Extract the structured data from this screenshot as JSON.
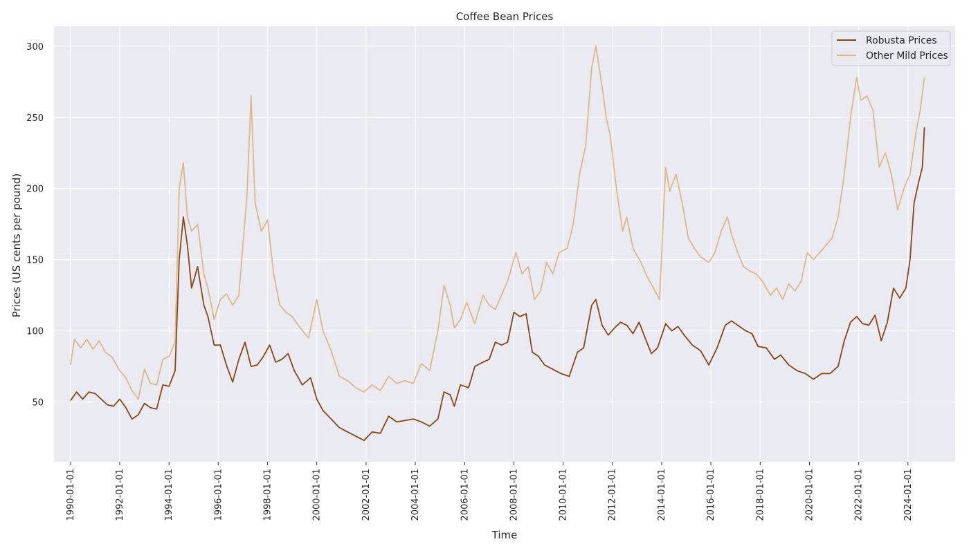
{
  "chart_data": {
    "type": "line",
    "title": "Coffee Bean Prices",
    "xlabel": "Time",
    "ylabel": "Prices (US cents per pound)",
    "ylabel_color": "#a0522d",
    "xlim": [
      "1989-05-01",
      "2025-12-01"
    ],
    "ylim": [
      8,
      314
    ],
    "x_ticks": [
      "1990-01-01",
      "1992-01-01",
      "1994-01-01",
      "1996-01-01",
      "1998-01-01",
      "2000-01-01",
      "2002-01-01",
      "2004-01-01",
      "2006-01-01",
      "2008-01-01",
      "2010-01-01",
      "2012-01-01",
      "2014-01-01",
      "2016-01-01",
      "2018-01-01",
      "2020-01-01",
      "2022-01-01",
      "2024-01-01"
    ],
    "y_ticks": [
      50,
      100,
      150,
      200,
      250,
      300
    ],
    "grid": true,
    "legend_position": "top-right",
    "background": "#eaeaf2",
    "series": [
      {
        "name": "Robusta Prices",
        "color": "#8b4513",
        "points": [
          [
            "1990-01-01",
            51
          ],
          [
            "1990-04-01",
            57
          ],
          [
            "1990-07-01",
            52
          ],
          [
            "1990-10-01",
            57
          ],
          [
            "1991-01-01",
            56
          ],
          [
            "1991-04-01",
            52
          ],
          [
            "1991-07-01",
            48
          ],
          [
            "1991-10-01",
            47
          ],
          [
            "1992-01-01",
            52
          ],
          [
            "1992-04-01",
            46
          ],
          [
            "1992-07-01",
            38
          ],
          [
            "1992-10-01",
            41
          ],
          [
            "1993-01-01",
            49
          ],
          [
            "1993-04-01",
            46
          ],
          [
            "1993-07-01",
            45
          ],
          [
            "1993-10-01",
            62
          ],
          [
            "1994-01-01",
            61
          ],
          [
            "1994-04-01",
            72
          ],
          [
            "1994-06-01",
            150
          ],
          [
            "1994-08-01",
            180
          ],
          [
            "1994-10-01",
            160
          ],
          [
            "1994-12-01",
            130
          ],
          [
            "1995-03-01",
            145
          ],
          [
            "1995-06-01",
            118
          ],
          [
            "1995-08-01",
            110
          ],
          [
            "1995-11-01",
            90
          ],
          [
            "1996-02-01",
            90
          ],
          [
            "1996-05-01",
            76
          ],
          [
            "1996-08-01",
            64
          ],
          [
            "1996-11-01",
            80
          ],
          [
            "1997-02-01",
            92
          ],
          [
            "1997-05-01",
            75
          ],
          [
            "1997-08-01",
            76
          ],
          [
            "1997-11-01",
            82
          ],
          [
            "1998-02-01",
            90
          ],
          [
            "1998-05-01",
            78
          ],
          [
            "1998-08-01",
            80
          ],
          [
            "1998-11-01",
            84
          ],
          [
            "1999-02-01",
            72
          ],
          [
            "1999-06-01",
            62
          ],
          [
            "1999-10-01",
            67
          ],
          [
            "2000-01-01",
            52
          ],
          [
            "2000-04-01",
            44
          ],
          [
            "2000-08-01",
            38
          ],
          [
            "2000-12-01",
            32
          ],
          [
            "2001-04-01",
            29
          ],
          [
            "2001-08-01",
            26
          ],
          [
            "2001-12-01",
            23
          ],
          [
            "2002-04-01",
            29
          ],
          [
            "2002-08-01",
            28
          ],
          [
            "2002-12-01",
            40
          ],
          [
            "2003-04-01",
            36
          ],
          [
            "2003-08-01",
            37
          ],
          [
            "2003-12-01",
            38
          ],
          [
            "2004-04-01",
            36
          ],
          [
            "2004-08-01",
            33
          ],
          [
            "2004-12-01",
            38
          ],
          [
            "2005-03-01",
            57
          ],
          [
            "2005-06-01",
            55
          ],
          [
            "2005-08-01",
            47
          ],
          [
            "2005-11-01",
            62
          ],
          [
            "2006-03-01",
            60
          ],
          [
            "2006-06-01",
            75
          ],
          [
            "2006-10-01",
            78
          ],
          [
            "2007-01-01",
            80
          ],
          [
            "2007-04-01",
            92
          ],
          [
            "2007-07-01",
            90
          ],
          [
            "2007-10-01",
            92
          ],
          [
            "2008-01-01",
            113
          ],
          [
            "2008-04-01",
            110
          ],
          [
            "2008-07-01",
            112
          ],
          [
            "2008-10-01",
            85
          ],
          [
            "2009-01-01",
            82
          ],
          [
            "2009-04-01",
            76
          ],
          [
            "2009-08-01",
            73
          ],
          [
            "2009-12-01",
            70
          ],
          [
            "2010-04-01",
            68
          ],
          [
            "2010-08-01",
            85
          ],
          [
            "2010-11-01",
            88
          ],
          [
            "2011-03-01",
            118
          ],
          [
            "2011-05-01",
            122
          ],
          [
            "2011-08-01",
            104
          ],
          [
            "2011-11-01",
            97
          ],
          [
            "2012-02-01",
            102
          ],
          [
            "2012-05-01",
            106
          ],
          [
            "2012-08-01",
            104
          ],
          [
            "2012-11-01",
            98
          ],
          [
            "2013-02-01",
            106
          ],
          [
            "2013-05-01",
            95
          ],
          [
            "2013-08-01",
            84
          ],
          [
            "2013-11-01",
            88
          ],
          [
            "2014-03-01",
            105
          ],
          [
            "2014-06-01",
            100
          ],
          [
            "2014-09-01",
            103
          ],
          [
            "2014-12-01",
            97
          ],
          [
            "2015-04-01",
            90
          ],
          [
            "2015-08-01",
            86
          ],
          [
            "2015-12-01",
            76
          ],
          [
            "2016-04-01",
            88
          ],
          [
            "2016-08-01",
            104
          ],
          [
            "2016-11-01",
            107
          ],
          [
            "2017-03-01",
            103
          ],
          [
            "2017-06-01",
            100
          ],
          [
            "2017-09-01",
            98
          ],
          [
            "2017-12-01",
            89
          ],
          [
            "2018-04-01",
            88
          ],
          [
            "2018-08-01",
            80
          ],
          [
            "2018-11-01",
            83
          ],
          [
            "2019-03-01",
            76
          ],
          [
            "2019-07-01",
            72
          ],
          [
            "2019-11-01",
            70
          ],
          [
            "2020-03-01",
            66
          ],
          [
            "2020-07-01",
            70
          ],
          [
            "2020-11-01",
            70
          ],
          [
            "2021-03-01",
            75
          ],
          [
            "2021-06-01",
            93
          ],
          [
            "2021-09-01",
            106
          ],
          [
            "2021-12-01",
            110
          ],
          [
            "2022-03-01",
            105
          ],
          [
            "2022-06-01",
            104
          ],
          [
            "2022-09-01",
            111
          ],
          [
            "2022-12-01",
            93
          ],
          [
            "2023-03-01",
            106
          ],
          [
            "2023-06-01",
            130
          ],
          [
            "2023-09-01",
            123
          ],
          [
            "2023-12-01",
            130
          ],
          [
            "2024-02-01",
            150
          ],
          [
            "2024-04-01",
            190
          ],
          [
            "2024-06-01",
            203
          ],
          [
            "2024-08-01",
            215
          ],
          [
            "2024-09-01",
            243
          ]
        ]
      },
      {
        "name": "Other Mild Prices",
        "color": "#deb887",
        "points": [
          [
            "1990-01-01",
            76
          ],
          [
            "1990-03-01",
            94
          ],
          [
            "1990-06-01",
            88
          ],
          [
            "1990-09-01",
            94
          ],
          [
            "1990-12-01",
            87
          ],
          [
            "1991-03-01",
            93
          ],
          [
            "1991-06-01",
            85
          ],
          [
            "1991-09-01",
            82
          ],
          [
            "1992-01-01",
            72
          ],
          [
            "1992-04-01",
            67
          ],
          [
            "1992-07-01",
            58
          ],
          [
            "1992-10-01",
            52
          ],
          [
            "1993-01-01",
            73
          ],
          [
            "1993-04-01",
            63
          ],
          [
            "1993-07-01",
            62
          ],
          [
            "1993-10-01",
            80
          ],
          [
            "1994-01-01",
            82
          ],
          [
            "1994-04-01",
            92
          ],
          [
            "1994-06-01",
            200
          ],
          [
            "1994-08-01",
            218
          ],
          [
            "1994-10-01",
            180
          ],
          [
            "1994-12-01",
            170
          ],
          [
            "1995-03-01",
            175
          ],
          [
            "1995-06-01",
            140
          ],
          [
            "1995-08-01",
            130
          ],
          [
            "1995-11-01",
            108
          ],
          [
            "1996-02-01",
            122
          ],
          [
            "1996-05-01",
            126
          ],
          [
            "1996-08-01",
            118
          ],
          [
            "1996-11-01",
            125
          ],
          [
            "1997-03-01",
            195
          ],
          [
            "1997-05-01",
            265
          ],
          [
            "1997-07-01",
            190
          ],
          [
            "1997-10-01",
            170
          ],
          [
            "1998-01-01",
            178
          ],
          [
            "1998-04-01",
            140
          ],
          [
            "1998-07-01",
            118
          ],
          [
            "1998-10-01",
            113
          ],
          [
            "1999-01-01",
            110
          ],
          [
            "1999-05-01",
            102
          ],
          [
            "1999-09-01",
            95
          ],
          [
            "2000-01-01",
            122
          ],
          [
            "2000-04-01",
            100
          ],
          [
            "2000-08-01",
            86
          ],
          [
            "2000-12-01",
            68
          ],
          [
            "2001-04-01",
            65
          ],
          [
            "2001-08-01",
            60
          ],
          [
            "2001-12-01",
            57
          ],
          [
            "2002-04-01",
            62
          ],
          [
            "2002-08-01",
            58
          ],
          [
            "2002-12-01",
            68
          ],
          [
            "2003-04-01",
            63
          ],
          [
            "2003-08-01",
            65
          ],
          [
            "2003-12-01",
            63
          ],
          [
            "2004-04-01",
            77
          ],
          [
            "2004-08-01",
            72
          ],
          [
            "2004-12-01",
            100
          ],
          [
            "2005-03-01",
            132
          ],
          [
            "2005-06-01",
            118
          ],
          [
            "2005-08-01",
            102
          ],
          [
            "2005-11-01",
            108
          ],
          [
            "2006-02-01",
            120
          ],
          [
            "2006-06-01",
            105
          ],
          [
            "2006-10-01",
            125
          ],
          [
            "2007-01-01",
            118
          ],
          [
            "2007-04-01",
            115
          ],
          [
            "2007-07-01",
            125
          ],
          [
            "2007-10-01",
            135
          ],
          [
            "2008-02-01",
            155
          ],
          [
            "2008-05-01",
            140
          ],
          [
            "2008-08-01",
            145
          ],
          [
            "2008-11-01",
            122
          ],
          [
            "2009-02-01",
            128
          ],
          [
            "2009-05-01",
            148
          ],
          [
            "2009-08-01",
            140
          ],
          [
            "2009-11-01",
            155
          ],
          [
            "2010-03-01",
            158
          ],
          [
            "2010-06-01",
            175
          ],
          [
            "2010-09-01",
            210
          ],
          [
            "2010-12-01",
            230
          ],
          [
            "2011-03-01",
            285
          ],
          [
            "2011-05-01",
            300
          ],
          [
            "2011-08-01",
            272
          ],
          [
            "2011-10-01",
            250
          ],
          [
            "2011-12-01",
            237
          ],
          [
            "2012-03-01",
            200
          ],
          [
            "2012-06-01",
            170
          ],
          [
            "2012-08-01",
            180
          ],
          [
            "2012-11-01",
            158
          ],
          [
            "2013-03-01",
            148
          ],
          [
            "2013-06-01",
            138
          ],
          [
            "2013-09-01",
            130
          ],
          [
            "2013-12-01",
            122
          ],
          [
            "2014-03-01",
            215
          ],
          [
            "2014-05-01",
            198
          ],
          [
            "2014-08-01",
            210
          ],
          [
            "2014-11-01",
            190
          ],
          [
            "2015-02-01",
            165
          ],
          [
            "2015-05-01",
            158
          ],
          [
            "2015-08-01",
            152
          ],
          [
            "2015-12-01",
            148
          ],
          [
            "2016-03-01",
            155
          ],
          [
            "2016-06-01",
            170
          ],
          [
            "2016-09-01",
            180
          ],
          [
            "2016-11-01",
            168
          ],
          [
            "2017-02-01",
            155
          ],
          [
            "2017-05-01",
            145
          ],
          [
            "2017-08-01",
            142
          ],
          [
            "2017-11-01",
            140
          ],
          [
            "2018-02-01",
            135
          ],
          [
            "2018-06-01",
            125
          ],
          [
            "2018-09-01",
            130
          ],
          [
            "2018-12-01",
            122
          ],
          [
            "2019-03-01",
            133
          ],
          [
            "2019-06-01",
            128
          ],
          [
            "2019-09-01",
            135
          ],
          [
            "2019-12-01",
            155
          ],
          [
            "2020-03-01",
            150
          ],
          [
            "2020-06-01",
            155
          ],
          [
            "2020-09-01",
            160
          ],
          [
            "2020-12-01",
            165
          ],
          [
            "2021-03-01",
            180
          ],
          [
            "2021-06-01",
            210
          ],
          [
            "2021-09-01",
            250
          ],
          [
            "2021-12-01",
            278
          ],
          [
            "2022-02-01",
            262
          ],
          [
            "2022-05-01",
            265
          ],
          [
            "2022-08-01",
            255
          ],
          [
            "2022-11-01",
            215
          ],
          [
            "2023-02-01",
            225
          ],
          [
            "2023-05-01",
            210
          ],
          [
            "2023-08-01",
            185
          ],
          [
            "2023-11-01",
            200
          ],
          [
            "2024-02-01",
            210
          ],
          [
            "2024-05-01",
            240
          ],
          [
            "2024-07-01",
            255
          ],
          [
            "2024-09-01",
            278
          ]
        ]
      }
    ]
  }
}
